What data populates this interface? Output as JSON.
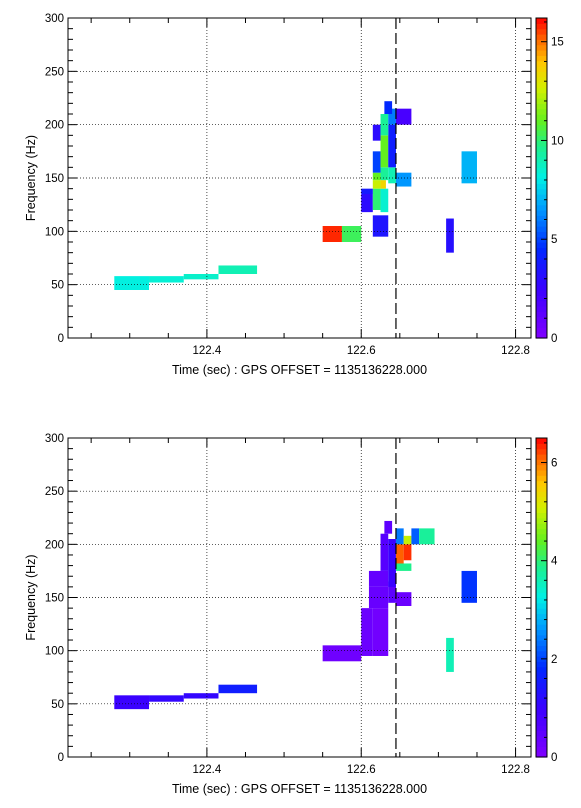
{
  "chart_data": [
    {
      "type": "heatmap",
      "xlabel": "Time (sec) : GPS OFFSET = 1135136228.000",
      "ylabel": "Frequency (Hz)",
      "xlim": [
        122.22,
        122.82
      ],
      "ylim": [
        0,
        300
      ],
      "x_ticks": [
        122.4,
        122.6,
        122.8
      ],
      "x_tick_labels": [
        "122.4",
        "122.6",
        "122.8"
      ],
      "y_ticks": [
        0,
        50,
        100,
        150,
        200,
        250,
        300
      ],
      "y_tick_labels": [
        "0",
        "50",
        "100",
        "150",
        "200",
        "250",
        "300"
      ],
      "grid": true,
      "event_marker_time": 122.645,
      "colorbar": {
        "range": [
          0,
          16.2
        ],
        "ticks": [
          0,
          5,
          10,
          15
        ],
        "tick_labels": [
          "0",
          "5",
          "10",
          "15"
        ],
        "palette": "rainbow"
      },
      "tiles": [
        {
          "t0": 122.28,
          "t1": 122.325,
          "f0": 45,
          "f1": 58,
          "value": 8.2
        },
        {
          "t0": 122.325,
          "t1": 122.37,
          "f0": 52,
          "f1": 58,
          "value": 8.4
        },
        {
          "t0": 122.37,
          "t1": 122.415,
          "f0": 55,
          "f1": 60,
          "value": 8.6
        },
        {
          "t0": 122.415,
          "t1": 122.465,
          "f0": 60,
          "f1": 68,
          "value": 9.0
        },
        {
          "t0": 122.55,
          "t1": 122.575,
          "f0": 90,
          "f1": 105,
          "value": 15.8
        },
        {
          "t0": 122.575,
          "t1": 122.6,
          "f0": 90,
          "f1": 105,
          "value": 10.3
        },
        {
          "t0": 122.6,
          "t1": 122.615,
          "f0": 118,
          "f1": 135,
          "value": 3.0
        },
        {
          "t0": 122.615,
          "t1": 122.625,
          "f0": 120,
          "f1": 140,
          "value": 10.0
        },
        {
          "t0": 122.625,
          "t1": 122.635,
          "f0": 118,
          "f1": 140,
          "value": 8.5
        },
        {
          "t0": 122.615,
          "t1": 122.625,
          "f0": 140,
          "f1": 148,
          "value": 12.5
        },
        {
          "t0": 122.625,
          "t1": 122.632,
          "f0": 140,
          "f1": 148,
          "value": 13.5
        },
        {
          "t0": 122.615,
          "t1": 122.625,
          "f0": 148,
          "f1": 155,
          "value": 11.0
        },
        {
          "t0": 122.625,
          "t1": 122.635,
          "f0": 148,
          "f1": 160,
          "value": 9.5
        },
        {
          "t0": 122.635,
          "t1": 122.645,
          "f0": 145,
          "f1": 160,
          "value": 9.0
        },
        {
          "t0": 122.615,
          "t1": 122.625,
          "f0": 155,
          "f1": 175,
          "value": 5.0
        },
        {
          "t0": 122.625,
          "t1": 122.635,
          "f0": 160,
          "f1": 190,
          "value": 11.0
        },
        {
          "t0": 122.635,
          "t1": 122.645,
          "f0": 160,
          "f1": 200,
          "value": 4.0
        },
        {
          "t0": 122.615,
          "t1": 122.625,
          "f0": 185,
          "f1": 200,
          "value": 3.0
        },
        {
          "t0": 122.625,
          "t1": 122.635,
          "f0": 190,
          "f1": 210,
          "value": 9.5
        },
        {
          "t0": 122.635,
          "t1": 122.645,
          "f0": 200,
          "f1": 215,
          "value": 6.0
        },
        {
          "t0": 122.63,
          "t1": 122.64,
          "f0": 210,
          "f1": 222,
          "value": 4.5
        },
        {
          "t0": 122.645,
          "t1": 122.665,
          "f0": 142,
          "f1": 155,
          "value": 6.5
        },
        {
          "t0": 122.645,
          "t1": 122.665,
          "f0": 200,
          "f1": 215,
          "value": 2.0
        },
        {
          "t0": 122.615,
          "t1": 122.635,
          "f0": 95,
          "f1": 115,
          "value": 3.5
        },
        {
          "t0": 122.6,
          "t1": 122.615,
          "f0": 135,
          "f1": 140,
          "value": 3.8
        },
        {
          "t0": 122.71,
          "t1": 122.72,
          "f0": 80,
          "f1": 112,
          "value": 3.2
        },
        {
          "t0": 122.73,
          "t1": 122.75,
          "f0": 145,
          "f1": 175,
          "value": 7.0
        }
      ]
    },
    {
      "type": "heatmap",
      "xlabel": "Time (sec) : GPS OFFSET = 1135136228.000",
      "ylabel": "Frequency (Hz)",
      "xlim": [
        122.22,
        122.82
      ],
      "ylim": [
        0,
        300
      ],
      "x_ticks": [
        122.4,
        122.6,
        122.8
      ],
      "x_tick_labels": [
        "122.4",
        "122.6",
        "122.8"
      ],
      "y_ticks": [
        0,
        50,
        100,
        150,
        200,
        250,
        300
      ],
      "y_tick_labels": [
        "0",
        "50",
        "100",
        "150",
        "200",
        "250",
        "300"
      ],
      "grid": true,
      "event_marker_time": 122.645,
      "colorbar": {
        "range": [
          0,
          6.5
        ],
        "ticks": [
          0,
          2,
          4,
          6
        ],
        "tick_labels": [
          "0",
          "2",
          "4",
          "6"
        ],
        "palette": "rainbow"
      },
      "tiles": [
        {
          "t0": 122.28,
          "t1": 122.325,
          "f0": 45,
          "f1": 58,
          "value": 1.0
        },
        {
          "t0": 122.325,
          "t1": 122.37,
          "f0": 52,
          "f1": 58,
          "value": 1.1
        },
        {
          "t0": 122.37,
          "t1": 122.415,
          "f0": 55,
          "f1": 60,
          "value": 1.1
        },
        {
          "t0": 122.415,
          "t1": 122.465,
          "f0": 60,
          "f1": 68,
          "value": 1.6
        },
        {
          "t0": 122.55,
          "t1": 122.6,
          "f0": 90,
          "f1": 105,
          "value": 0.25
        },
        {
          "t0": 122.6,
          "t1": 122.615,
          "f0": 95,
          "f1": 140,
          "value": 0.3
        },
        {
          "t0": 122.615,
          "t1": 122.635,
          "f0": 95,
          "f1": 140,
          "value": 0.2
        },
        {
          "t0": 122.61,
          "t1": 122.635,
          "f0": 140,
          "f1": 160,
          "value": 0.35
        },
        {
          "t0": 122.635,
          "t1": 122.645,
          "f0": 145,
          "f1": 165,
          "value": 0.5
        },
        {
          "t0": 122.645,
          "t1": 122.665,
          "f0": 142,
          "f1": 155,
          "value": 0.3
        },
        {
          "t0": 122.61,
          "t1": 122.635,
          "f0": 160,
          "f1": 175,
          "value": 0.4
        },
        {
          "t0": 122.625,
          "t1": 122.635,
          "f0": 175,
          "f1": 210,
          "value": 0.6
        },
        {
          "t0": 122.635,
          "t1": 122.645,
          "f0": 160,
          "f1": 205,
          "value": 1.0
        },
        {
          "t0": 122.63,
          "t1": 122.64,
          "f0": 210,
          "f1": 222,
          "value": 0.5
        },
        {
          "t0": 122.645,
          "t1": 122.655,
          "f0": 180,
          "f1": 200,
          "value": 6.1
        },
        {
          "t0": 122.655,
          "t1": 122.665,
          "f0": 185,
          "f1": 200,
          "value": 6.3
        },
        {
          "t0": 122.645,
          "t1": 122.665,
          "f0": 175,
          "f1": 182,
          "value": 3.9
        },
        {
          "t0": 122.645,
          "t1": 122.655,
          "f0": 200,
          "f1": 215,
          "value": 2.4
        },
        {
          "t0": 122.655,
          "t1": 122.665,
          "f0": 200,
          "f1": 208,
          "value": 5.0
        },
        {
          "t0": 122.665,
          "t1": 122.675,
          "f0": 200,
          "f1": 215,
          "value": 2.2
        },
        {
          "t0": 122.675,
          "t1": 122.695,
          "f0": 200,
          "f1": 215,
          "value": 3.8
        },
        {
          "t0": 122.71,
          "t1": 122.72,
          "f0": 80,
          "f1": 112,
          "value": 3.6
        },
        {
          "t0": 122.73,
          "t1": 122.75,
          "f0": 145,
          "f1": 175,
          "value": 1.9
        }
      ]
    }
  ]
}
